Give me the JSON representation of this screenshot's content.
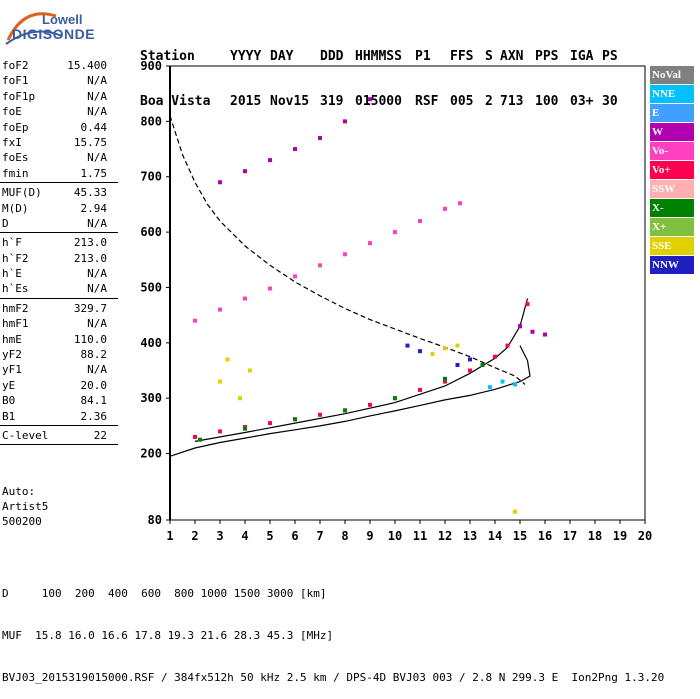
{
  "logo": {
    "line1": "Lowell",
    "line2": "DIGISONDE"
  },
  "header": {
    "labels": [
      "Station",
      "YYYY",
      "DAY",
      "DDD",
      "HHMMSS",
      "P1",
      "FFS",
      "S",
      "AXN",
      "PPS",
      "IGA",
      "PS"
    ],
    "values": [
      "Boa Vista",
      "2015",
      "Nov15",
      "319",
      "015000",
      "RSF",
      "005",
      "2",
      "713",
      "100",
      "03+",
      "30"
    ]
  },
  "params": [
    {
      "name": "foF2",
      "value": "15.400"
    },
    {
      "name": "foF1",
      "value": "N/A"
    },
    {
      "name": "foF1p",
      "value": "N/A"
    },
    {
      "name": "foE",
      "value": "N/A"
    },
    {
      "name": "foEp",
      "value": "0.44"
    },
    {
      "name": "fxI",
      "value": "15.75"
    },
    {
      "name": "foEs",
      "value": "N/A"
    },
    {
      "name": "fmin",
      "value": "1.75"
    },
    {
      "sep": true
    },
    {
      "name": "MUF(D)",
      "value": "45.33"
    },
    {
      "name": "M(D)",
      "value": "2.94"
    },
    {
      "name": "D",
      "value": "N/A"
    },
    {
      "sep": true
    },
    {
      "name": "h`F",
      "value": "213.0"
    },
    {
      "name": "h`F2",
      "value": "213.0"
    },
    {
      "name": "h`E",
      "value": "N/A"
    },
    {
      "name": "h`Es",
      "value": "N/A"
    },
    {
      "sep": true
    },
    {
      "name": "hmF2",
      "value": "329.7"
    },
    {
      "name": "hmF1",
      "value": "N/A"
    },
    {
      "name": "hmE",
      "value": "110.0"
    },
    {
      "name": "yF2",
      "value": "88.2"
    },
    {
      "name": "yF1",
      "value": "N/A"
    },
    {
      "name": "yE",
      "value": "20.0"
    },
    {
      "name": "B0",
      "value": "84.1"
    },
    {
      "name": "B1",
      "value": "2.36"
    },
    {
      "sep": true
    },
    {
      "name": "C-level",
      "value": "22"
    },
    {
      "sep": true
    }
  ],
  "auto": {
    "line1": "Auto:",
    "line2": "Artist5",
    "line3": "500200"
  },
  "legend": [
    {
      "label": "NoVal",
      "color": "#808080"
    },
    {
      "label": "NNE",
      "color": "#00c0ff"
    },
    {
      "label": "E",
      "color": "#40a0ff"
    },
    {
      "label": "W",
      "color": "#b000b0"
    },
    {
      "label": "Vo-",
      "color": "#ff40c0"
    },
    {
      "label": "Vo+",
      "color": "#ff0050"
    },
    {
      "label": "SSW",
      "color": "#ffb0b0"
    },
    {
      "label": "X-",
      "color": "#008000"
    },
    {
      "label": "X+",
      "color": "#80c040"
    },
    {
      "label": "SSE",
      "color": "#e0d000"
    },
    {
      "label": "NNW",
      "color": "#2020c0"
    }
  ],
  "footer": {
    "line1": "D     100  200  400  600  800 1000 1500 3000 [km]",
    "line2": "MUF  15.8 16.0 16.6 17.8 19.3 21.6 28.3 45.3 [MHz]",
    "line3": "BVJ03_2015319015000.RSF / 384fx512h 50 kHz 2.5 km / DPS-4D BVJ03 003 / 2.8 N 299.3 E  Ion2Png 1.3.20"
  },
  "chart_data": {
    "type": "scatter",
    "xlim": [
      1,
      20
    ],
    "ylim": [
      80,
      900
    ],
    "x_ticks": [
      1,
      2,
      3,
      4,
      5,
      6,
      7,
      8,
      9,
      10,
      11,
      12,
      13,
      14,
      15,
      16,
      17,
      18,
      19,
      20
    ],
    "y_ticks": [
      80,
      200,
      300,
      400,
      500,
      600,
      700,
      800,
      900
    ],
    "grid": false,
    "legend_position": "right",
    "series": [
      {
        "name": "Vo+",
        "color": "#ff0050",
        "x": [
          2.0,
          3.0,
          4.0,
          5.0,
          6.0,
          7.0,
          8.0,
          9.0,
          10.0,
          11.0,
          12.0,
          13.0,
          14.0,
          14.5,
          15.0,
          15.3
        ],
        "y": [
          230,
          240,
          248,
          255,
          262,
          270,
          278,
          288,
          300,
          315,
          330,
          350,
          375,
          395,
          430,
          470
        ]
      },
      {
        "name": "X-",
        "color": "#008000",
        "x": [
          2.2,
          4.0,
          6.0,
          8.0,
          10.0,
          12.0,
          13.5
        ],
        "y": [
          225,
          245,
          262,
          278,
          300,
          335,
          360
        ]
      },
      {
        "name": "Vo-",
        "color": "#ff40c0",
        "x": [
          2.0,
          3.0,
          4.0,
          5.0,
          6.0,
          7.0,
          8.0,
          9.0,
          10.0,
          11.0,
          12.0,
          12.6
        ],
        "y": [
          440,
          460,
          480,
          498,
          520,
          540,
          560,
          580,
          600,
          620,
          642,
          652
        ]
      },
      {
        "name": "W",
        "color": "#b000b0",
        "x": [
          3.0,
          4.0,
          5.0,
          6.0,
          7.0,
          8.0,
          9.0,
          15.0,
          15.5,
          16.0
        ],
        "y": [
          690,
          710,
          730,
          750,
          770,
          800,
          840,
          430,
          420,
          415
        ]
      },
      {
        "name": "SSE",
        "color": "#e0d000",
        "x": [
          3.0,
          3.3,
          3.8,
          4.2,
          11.5,
          12.0,
          12.5,
          14.8
        ],
        "y": [
          330,
          370,
          300,
          350,
          380,
          390,
          395,
          95
        ]
      },
      {
        "name": "NNW",
        "color": "#2020c0",
        "x": [
          10.5,
          11.0,
          12.5,
          13.0
        ],
        "y": [
          395,
          385,
          360,
          370
        ]
      },
      {
        "name": "NNE",
        "color": "#00c0ff",
        "x": [
          13.8,
          14.3,
          14.8
        ],
        "y": [
          320,
          330,
          325
        ]
      }
    ],
    "curves": [
      {
        "name": "profile",
        "style": "solid",
        "x": [
          1,
          2,
          3,
          4,
          5,
          6,
          7,
          8,
          9,
          10,
          11,
          12,
          13,
          14,
          15,
          15.4,
          15.3,
          15.0
        ],
        "y": [
          195,
          210,
          220,
          228,
          236,
          243,
          250,
          258,
          268,
          277,
          287,
          297,
          305,
          316,
          330,
          340,
          368,
          395
        ]
      },
      {
        "name": "trace",
        "style": "solid",
        "x": [
          2,
          4,
          6,
          8,
          10,
          12,
          13,
          14,
          14.5,
          15,
          15.3
        ],
        "y": [
          222,
          238,
          255,
          272,
          292,
          322,
          345,
          372,
          392,
          430,
          480
        ]
      },
      {
        "name": "model",
        "style": "dashed",
        "x": [
          1,
          1.5,
          2,
          2.5,
          3,
          4,
          5,
          6,
          7,
          8,
          9,
          10,
          11,
          12,
          13,
          14,
          14.8,
          15.2
        ],
        "y": [
          810,
          740,
          690,
          650,
          620,
          575,
          540,
          510,
          485,
          462,
          442,
          425,
          408,
          392,
          375,
          355,
          340,
          325
        ]
      }
    ]
  }
}
